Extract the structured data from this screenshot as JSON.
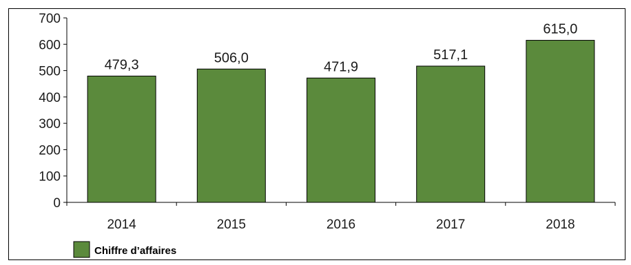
{
  "chart_data": {
    "type": "bar",
    "categories": [
      "2014",
      "2015",
      "2016",
      "2017",
      "2018"
    ],
    "series": [
      {
        "name": "Chiffre d’affaires",
        "values": [
          479.3,
          506.0,
          471.9,
          517.1,
          615.0
        ],
        "value_labels": [
          "479,3",
          "506,0",
          "471,9",
          "517,1",
          "615,0"
        ],
        "color": "#5b8a3c"
      }
    ],
    "y_ticks": [
      "0",
      "100",
      "200",
      "300",
      "400",
      "500",
      "600",
      "700"
    ],
    "ylim": [
      0,
      700
    ],
    "grid": false,
    "legend_position": "bottom-left",
    "title": "",
    "xlabel": "",
    "ylabel": ""
  }
}
